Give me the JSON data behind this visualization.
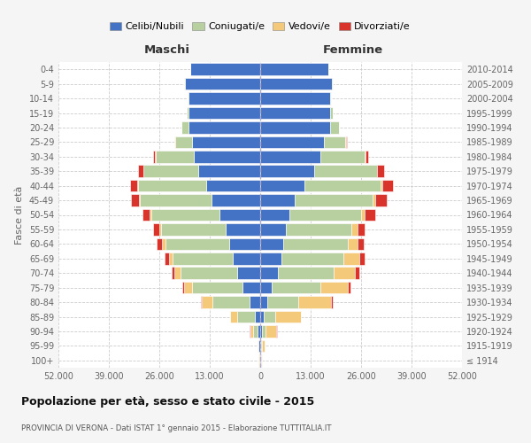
{
  "age_groups": [
    "0-4",
    "5-9",
    "10-14",
    "15-19",
    "20-24",
    "25-29",
    "30-34",
    "35-39",
    "40-44",
    "45-49",
    "50-54",
    "55-59",
    "60-64",
    "65-69",
    "70-74",
    "75-79",
    "80-84",
    "85-89",
    "90-94",
    "95-99",
    "100+"
  ],
  "birth_years": [
    "2010-2014",
    "2005-2009",
    "2000-2004",
    "1995-1999",
    "1990-1994",
    "1985-1989",
    "1980-1984",
    "1975-1979",
    "1970-1974",
    "1965-1969",
    "1960-1964",
    "1955-1959",
    "1950-1954",
    "1945-1949",
    "1940-1944",
    "1935-1939",
    "1930-1934",
    "1925-1929",
    "1920-1924",
    "1915-1919",
    "≤ 1914"
  ],
  "maschi": {
    "celibi": [
      18000,
      19500,
      18500,
      18500,
      18500,
      17500,
      17000,
      16000,
      14000,
      12500,
      10500,
      9000,
      8000,
      7000,
      6000,
      4500,
      2800,
      1400,
      700,
      350,
      200
    ],
    "coniugati": [
      80,
      100,
      100,
      400,
      1800,
      4500,
      10000,
      14000,
      17500,
      18500,
      17500,
      16500,
      16500,
      15500,
      14500,
      13000,
      9500,
      4500,
      1200,
      200,
      80
    ],
    "vedovi": [
      20,
      40,
      10,
      20,
      30,
      50,
      100,
      150,
      200,
      300,
      450,
      600,
      800,
      1100,
      1600,
      2200,
      2800,
      1800,
      700,
      200,
      80
    ],
    "divorziati": [
      10,
      10,
      10,
      20,
      50,
      150,
      500,
      1300,
      1900,
      2100,
      1900,
      1600,
      1300,
      1000,
      700,
      400,
      200,
      100,
      50,
      20,
      10
    ]
  },
  "femmine": {
    "nubili": [
      17500,
      18500,
      18000,
      18000,
      18000,
      16500,
      15500,
      14000,
      11500,
      9000,
      7500,
      6500,
      6000,
      5500,
      4500,
      3000,
      1800,
      900,
      500,
      250,
      200
    ],
    "coniugate": [
      100,
      150,
      150,
      600,
      2200,
      5500,
      11500,
      16000,
      19500,
      20000,
      18500,
      17000,
      16500,
      16000,
      14500,
      12500,
      8000,
      3000,
      900,
      150,
      80
    ],
    "vedove": [
      15,
      20,
      10,
      20,
      30,
      60,
      120,
      200,
      400,
      700,
      1000,
      1500,
      2500,
      4000,
      5500,
      7000,
      8500,
      6500,
      2800,
      700,
      200
    ],
    "divorziate": [
      20,
      20,
      20,
      30,
      80,
      200,
      700,
      1700,
      2700,
      3000,
      2700,
      1900,
      1600,
      1400,
      1100,
      750,
      450,
      200,
      80,
      20,
      10
    ]
  },
  "colors": {
    "celibi": "#4472c4",
    "coniugati": "#b8cfa0",
    "vedovi": "#f5c97a",
    "divorziati": "#d9342b"
  },
  "xlim": 52000,
  "title": "Popolazione per età, sesso e stato civile - 2015",
  "subtitle": "PROVINCIA DI VERONA - Dati ISTAT 1° gennaio 2015 - Elaborazione TUTTITALIA.IT",
  "ylabel_left": "Fasce di età",
  "label_maschi": "Maschi",
  "label_femmine": "Femmine",
  "legend_labels": [
    "Celibi/Nubili",
    "Coniugati/e",
    "Vedovi/e",
    "Divorziati/e"
  ],
  "bg_color": "#f5f5f5",
  "plot_bg_color": "#ffffff",
  "tick_labels": [
    "52.000",
    "39.000",
    "26.000",
    "13.000",
    "0",
    "13.000",
    "26.000",
    "39.000",
    "52.000"
  ],
  "tick_positions": [
    -52000,
    -39000,
    -26000,
    -13000,
    0,
    13000,
    26000,
    39000,
    52000
  ]
}
